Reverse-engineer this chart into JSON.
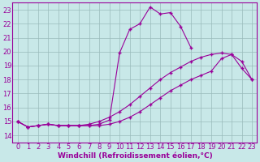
{
  "xlabel": "Windchill (Refroidissement éolien,°C)",
  "ylabel": "",
  "bg_color": "#c8e8e8",
  "grid_color": "#99bbbb",
  "line_color": "#990099",
  "xlim": [
    -0.5,
    23.5
  ],
  "ylim": [
    13.5,
    23.5
  ],
  "xticks": [
    0,
    1,
    2,
    3,
    4,
    5,
    6,
    7,
    8,
    9,
    10,
    11,
    12,
    13,
    14,
    15,
    16,
    17,
    18,
    19,
    20,
    21,
    22,
    23
  ],
  "yticks": [
    14,
    15,
    16,
    17,
    18,
    19,
    20,
    21,
    22,
    23
  ],
  "line1_x": [
    0,
    1,
    2,
    3,
    4,
    5,
    6,
    7,
    8,
    9,
    10,
    11,
    12,
    13,
    14,
    15,
    16,
    17
  ],
  "line1_y": [
    15.0,
    14.6,
    14.7,
    14.8,
    14.7,
    14.7,
    14.7,
    14.7,
    14.8,
    15.1,
    19.9,
    21.6,
    22.0,
    23.2,
    22.7,
    22.8,
    21.8,
    20.3
  ],
  "line2_x": [
    0,
    1,
    2,
    3,
    4,
    5,
    6,
    7,
    8,
    9,
    10,
    11,
    12,
    13,
    14,
    15,
    16,
    17,
    18,
    19,
    20,
    21,
    22,
    23
  ],
  "line2_y": [
    15.0,
    14.6,
    14.7,
    14.8,
    14.7,
    14.7,
    14.7,
    14.7,
    14.7,
    14.8,
    15.0,
    15.3,
    15.7,
    16.2,
    16.7,
    17.2,
    17.6,
    18.0,
    18.3,
    18.6,
    19.5,
    19.8,
    18.8,
    18.0
  ],
  "line3_x": [
    0,
    1,
    2,
    3,
    4,
    5,
    6,
    7,
    8,
    9,
    10,
    11,
    12,
    13,
    14,
    15,
    16,
    17,
    18,
    19,
    20,
    21,
    22,
    23
  ],
  "line3_y": [
    15.0,
    14.6,
    14.7,
    14.8,
    14.7,
    14.7,
    14.7,
    14.8,
    15.0,
    15.3,
    15.7,
    16.2,
    16.8,
    17.4,
    18.0,
    18.5,
    18.9,
    19.3,
    19.6,
    19.8,
    19.9,
    19.8,
    19.3,
    18.0
  ],
  "xlabel_fontsize": 6.5,
  "tick_fontsize": 6
}
